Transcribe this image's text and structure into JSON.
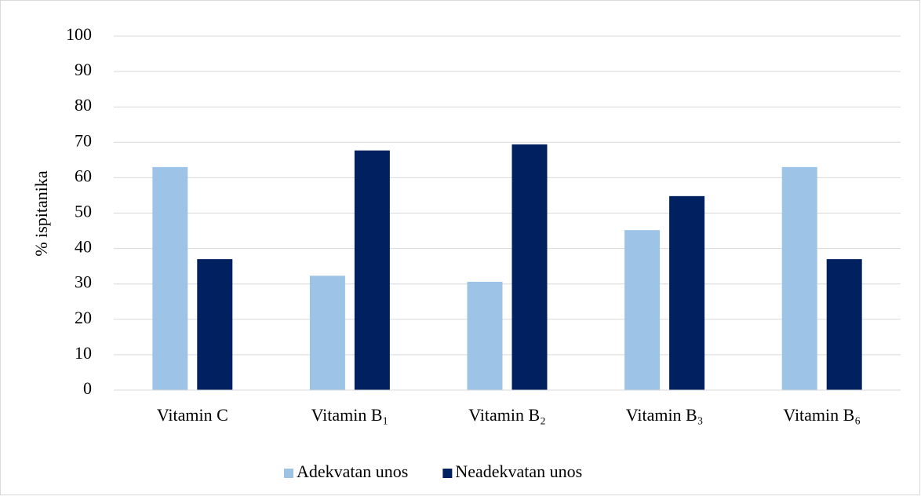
{
  "chart_data": {
    "type": "bar",
    "y_label": "% ispitanika",
    "categories": [
      "Vitamin C",
      "Vitamin B₁",
      "Vitamin B₂",
      "Vitamin B₃",
      "Vitamin B₆"
    ],
    "series": [
      {
        "name": "Adekvatan unos",
        "color": "#9dc3e6",
        "values": [
          63,
          32.3,
          30.6,
          45.2,
          63
        ]
      },
      {
        "name": "Neadekvatan unos",
        "color": "#002060",
        "values": [
          37,
          67.7,
          69.4,
          54.8,
          37
        ]
      }
    ],
    "ylim": [
      0,
      100
    ],
    "yticks": [
      0,
      10,
      20,
      30,
      40,
      50,
      60,
      70,
      80,
      90,
      100
    ],
    "grid": true,
    "legend": "bottom"
  }
}
